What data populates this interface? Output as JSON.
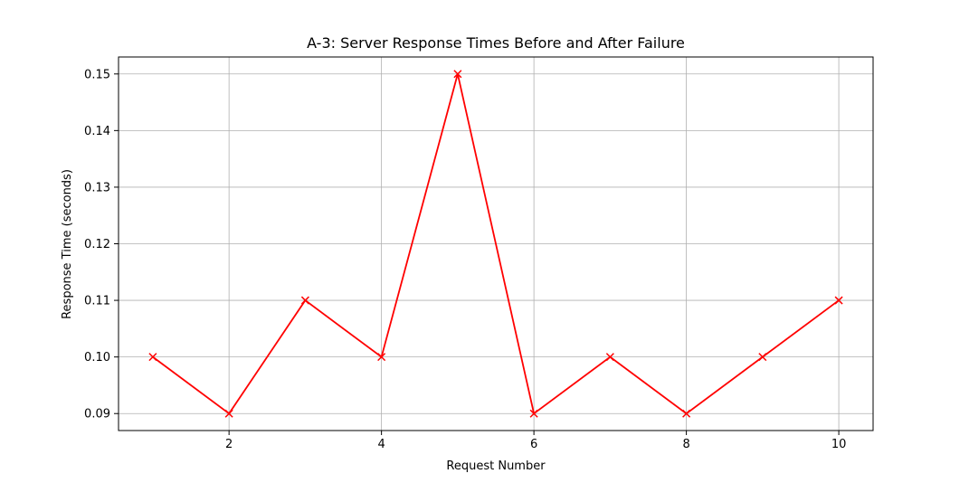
{
  "chart_data": {
    "type": "line",
    "title": "A-3: Server Response Times Before and After Failure",
    "xlabel": "Request Number",
    "ylabel": "Response Time (seconds)",
    "x": [
      1,
      2,
      3,
      4,
      5,
      6,
      7,
      8,
      9,
      10
    ],
    "series": [
      {
        "values": [
          0.1,
          0.09,
          0.11,
          0.1,
          0.15,
          0.09,
          0.1,
          0.09,
          0.1,
          0.11
        ],
        "color": "#ff0000",
        "marker": "x"
      }
    ],
    "xlim": [
      0.55,
      10.45
    ],
    "ylim": [
      0.087,
      0.153
    ],
    "xticks": [
      2,
      4,
      6,
      8,
      10
    ],
    "yticks": [
      0.09,
      0.1,
      0.11,
      0.12,
      0.13,
      0.14,
      0.15
    ],
    "xtick_labels": [
      "2",
      "4",
      "6",
      "8",
      "10"
    ],
    "ytick_labels": [
      "0.09",
      "0.10",
      "0.11",
      "0.12",
      "0.13",
      "0.14",
      "0.15"
    ],
    "grid": true,
    "legend": "none"
  }
}
